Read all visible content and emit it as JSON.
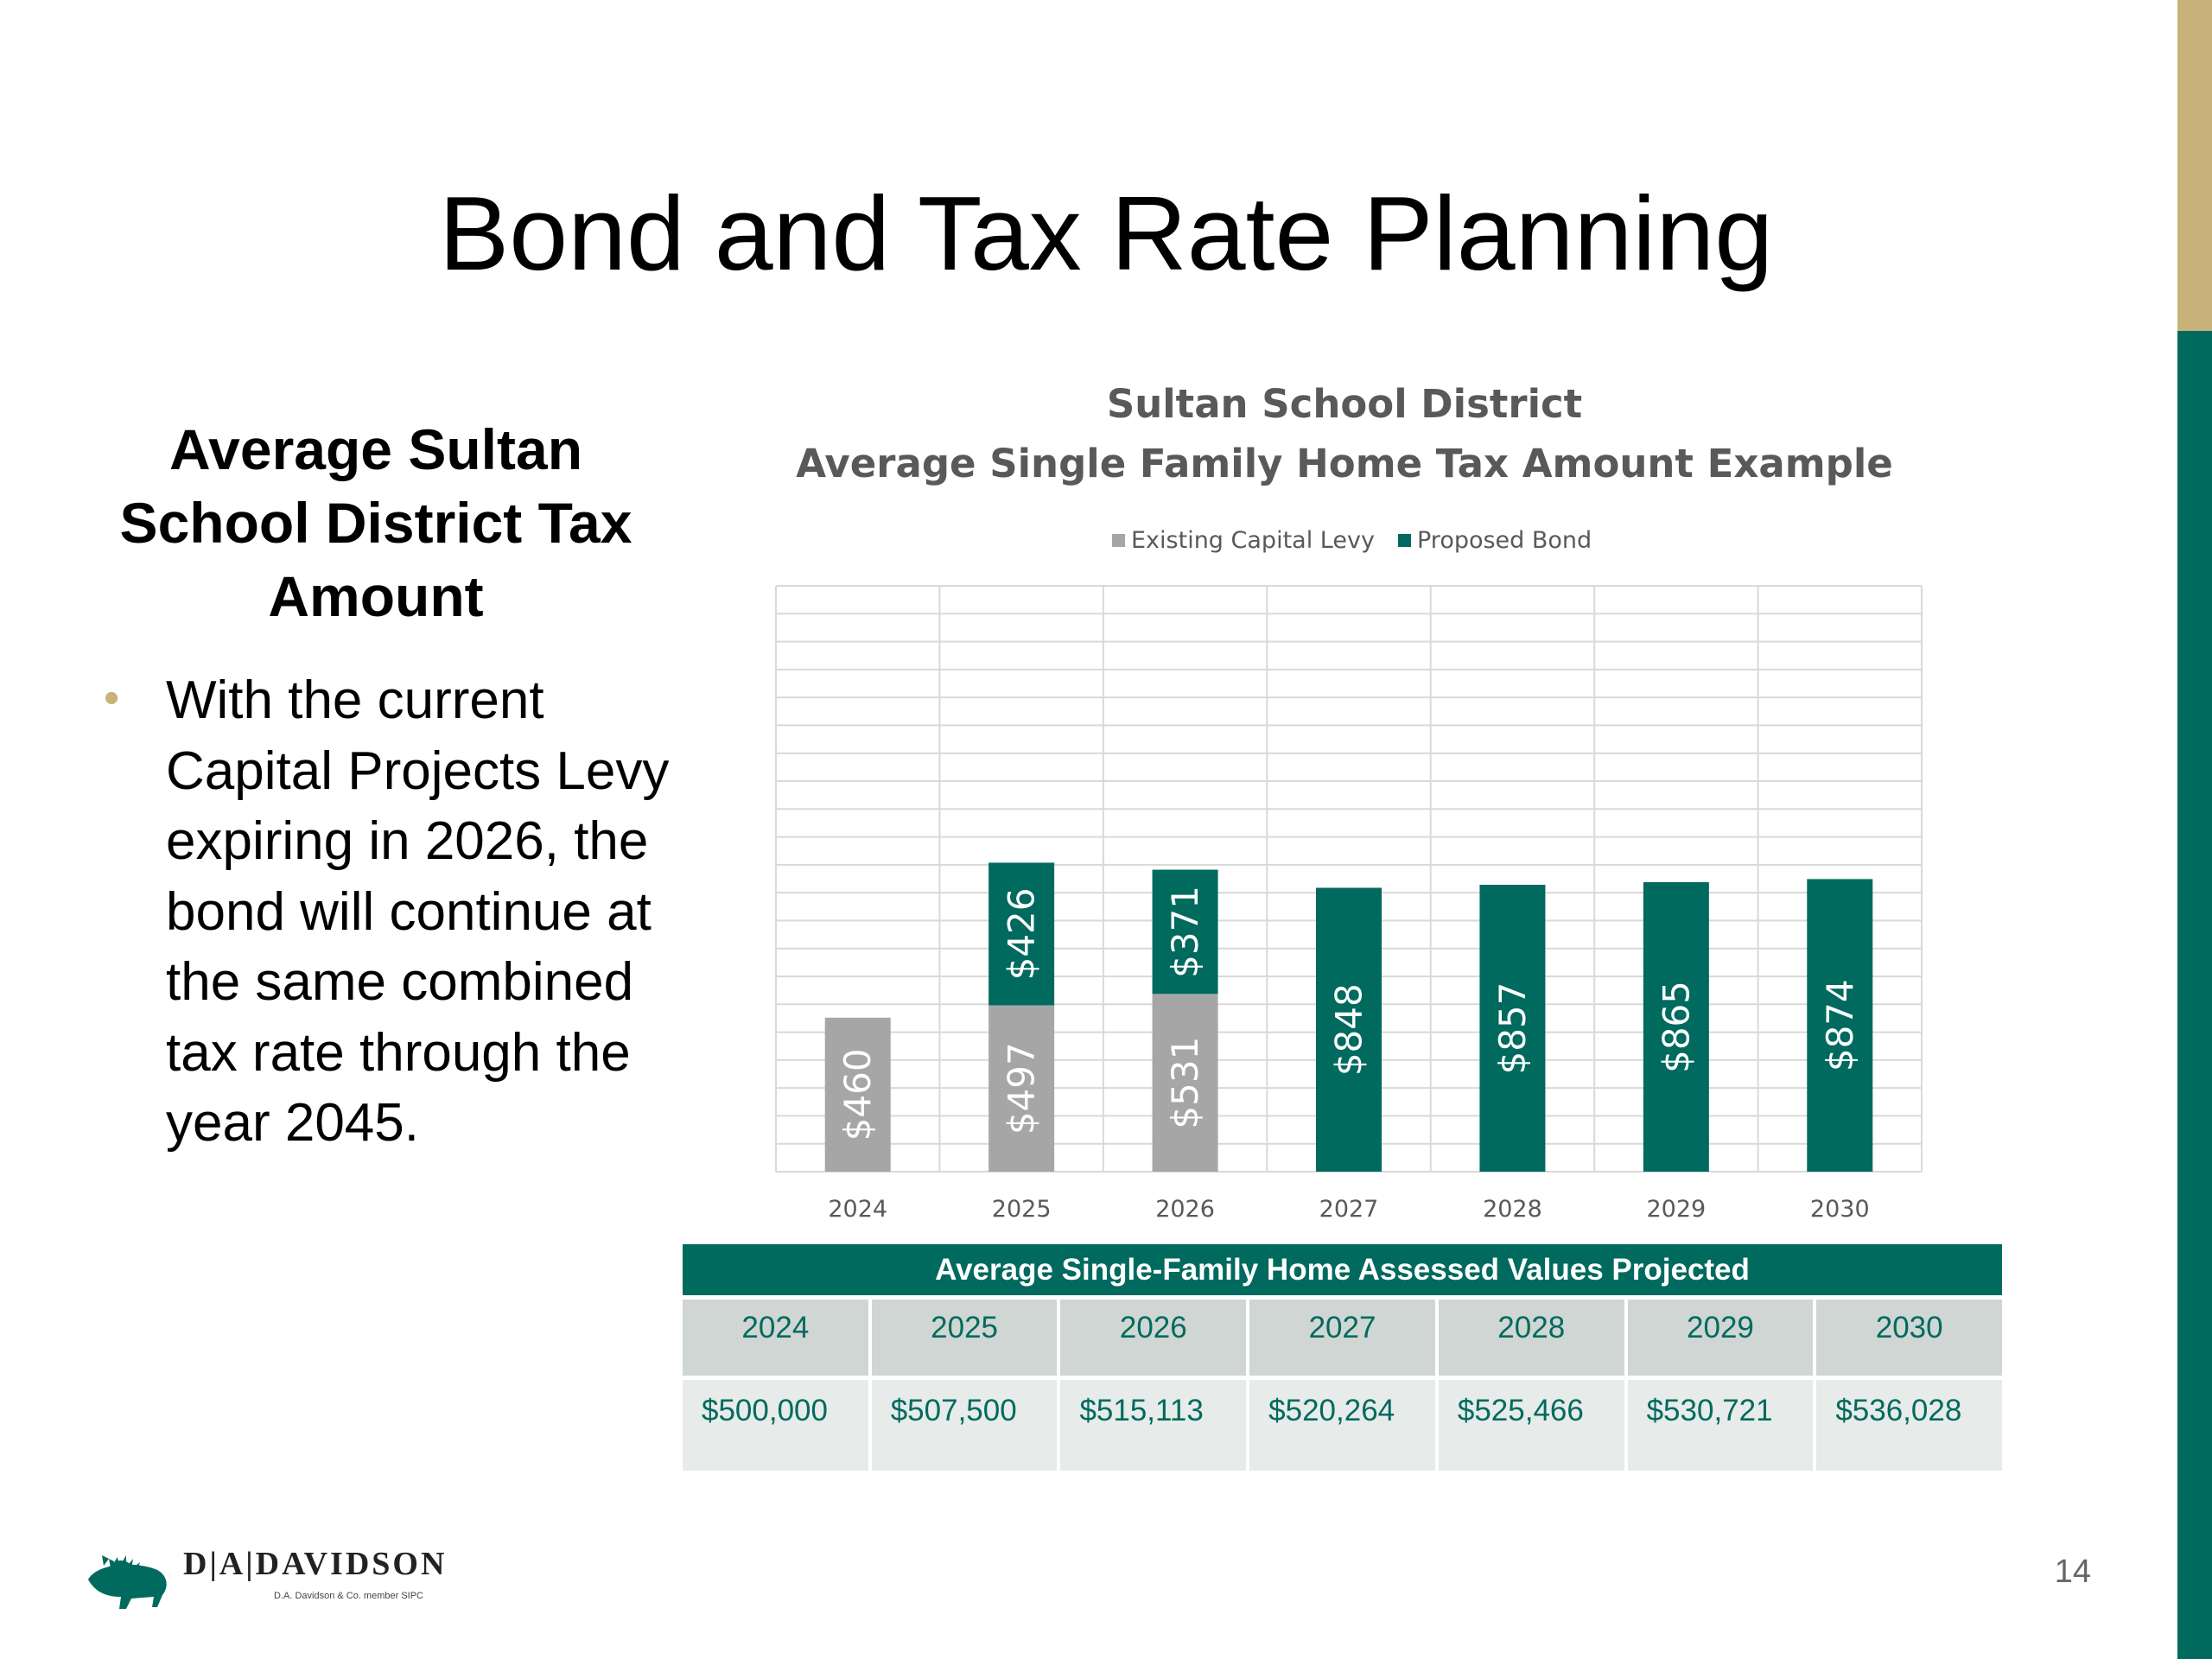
{
  "slide": {
    "title": "Bond and Tax Rate Planning",
    "page_number": "14"
  },
  "left": {
    "heading": "Average Sultan School District Tax Amount",
    "bullet": "With the current Capital Projects Levy expiring in 2026, the bond will continue at the same combined tax rate through the year 2045."
  },
  "chart_data": {
    "type": "bar",
    "stacked": true,
    "title": "Sultan School District",
    "subtitle": "Average Single Family Home Tax Amount Example",
    "legend_position": "top",
    "grid": true,
    "ylim": [
      0,
      1750
    ],
    "categories": [
      "2024",
      "2025",
      "2026",
      "2027",
      "2028",
      "2029",
      "2030"
    ],
    "series": [
      {
        "name": "Existing Capital Levy",
        "color": "#a6a6a6",
        "values": [
          460,
          497,
          531,
          0,
          0,
          0,
          0
        ],
        "labels": [
          "$460",
          "$497",
          "$531",
          "",
          "",
          "",
          ""
        ]
      },
      {
        "name": "Proposed Bond",
        "color": "#006a5e",
        "values": [
          0,
          426,
          371,
          848,
          857,
          865,
          874
        ],
        "labels": [
          "",
          "$426",
          "$371",
          "$848",
          "$857",
          "$865",
          "$874"
        ]
      }
    ]
  },
  "table": {
    "header": "Average Single-Family Home Assessed Values Projected",
    "years": [
      "2024",
      "2025",
      "2026",
      "2027",
      "2028",
      "2029",
      "2030"
    ],
    "values": [
      "$500,000",
      "$507,500",
      "$515,113",
      "$520,264",
      "$525,466",
      "$530,721",
      "$536,028"
    ]
  },
  "logo": {
    "name": "D|A|DAVIDSON",
    "subtitle": "D.A. Davidson & Co. member SIPC"
  },
  "colors": {
    "accent_green": "#006a5e",
    "accent_gold": "#c8b27a",
    "levy_gray": "#a6a6a6"
  }
}
